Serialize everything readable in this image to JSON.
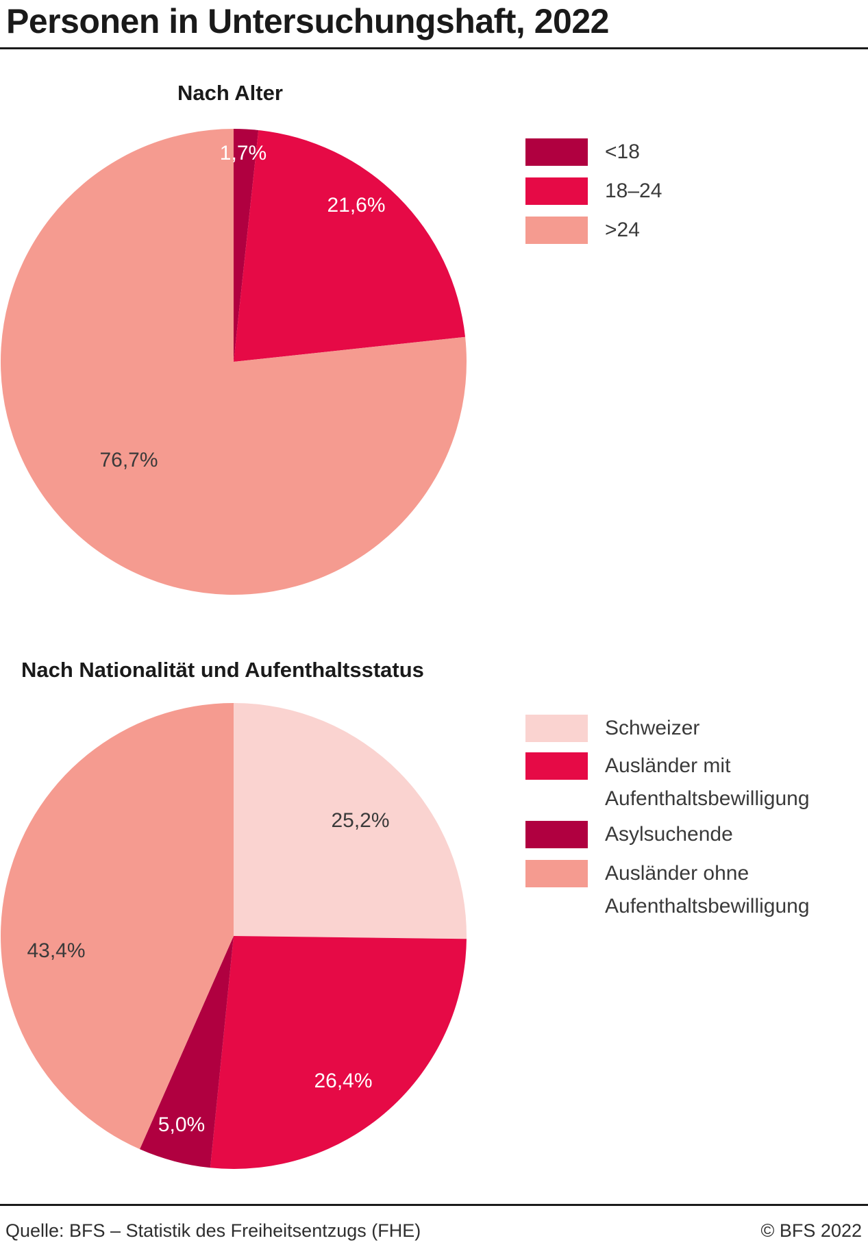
{
  "page": {
    "title": "Personen in Untersuchungshaft, 2022"
  },
  "footer": {
    "source": "Quelle: BFS – Statistik des Freiheitsentzugs (FHE)",
    "copyright": "© BFS 2022"
  },
  "palette": {
    "dark_carmine": "#b00040",
    "crimson": "#e60a46",
    "salmon": "#f59b90",
    "light_pink": "#fad3d0",
    "text_dark": "#3a3a3a",
    "text_light": "#ffffff"
  },
  "chart_data": [
    {
      "type": "pie",
      "title": "Nach Alter",
      "categories": [
        "<18",
        "18–24",
        ">24"
      ],
      "values": [
        1.7,
        21.6,
        76.7
      ],
      "value_labels": [
        "1,7%",
        "21,6%",
        "76,7%"
      ],
      "colors": [
        "#b00040",
        "#e60a46",
        "#f59b90"
      ],
      "label_text_colors": [
        "#ffffff",
        "#ffffff",
        "#3a3a3a"
      ],
      "start_angle_deg": 0,
      "direction": "clockwise",
      "legend_position": "right",
      "grid": false
    },
    {
      "type": "pie",
      "title": "Nach Nationalität und Aufenthaltsstatus",
      "categories": [
        "Schweizer",
        "Ausländer mit Aufenthaltsbewilligung",
        "Asylsuchende",
        "Ausländer ohne Aufenthaltsbewilligung"
      ],
      "values": [
        25.2,
        26.4,
        5.0,
        43.4
      ],
      "value_labels": [
        "25,2%",
        "26,4%",
        "5,0%",
        "43,4%"
      ],
      "colors": [
        "#fad3d0",
        "#e60a46",
        "#b00040",
        "#f59b90"
      ],
      "label_text_colors": [
        "#3a3a3a",
        "#ffffff",
        "#ffffff",
        "#3a3a3a"
      ],
      "start_angle_deg": 0,
      "direction": "clockwise",
      "legend_position": "right",
      "grid": false
    }
  ]
}
